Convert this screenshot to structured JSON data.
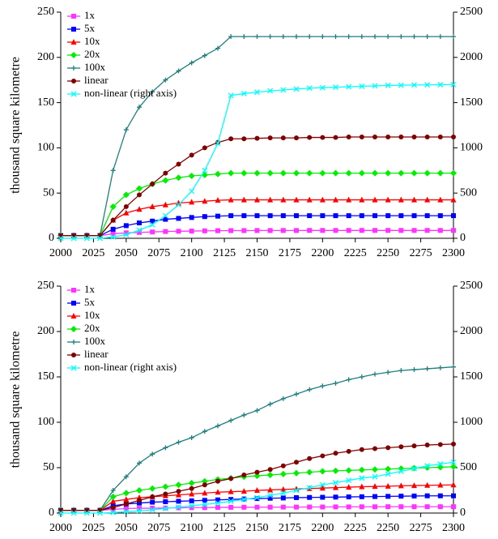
{
  "chart_data": [
    {
      "type": "line",
      "ylabel": "thousand square kilometre",
      "x": [
        2000,
        2010,
        2020,
        2030,
        2040,
        2050,
        2060,
        2070,
        2080,
        2090,
        2100,
        2110,
        2120,
        2130,
        2140,
        2150,
        2160,
        2170,
        2180,
        2190,
        2200,
        2210,
        2220,
        2230,
        2240,
        2250,
        2260,
        2270,
        2280,
        2290,
        2300
      ],
      "xlim": [
        2000,
        2300
      ],
      "xticks": [
        2000,
        2025,
        2050,
        2075,
        2100,
        2125,
        2150,
        2175,
        2200,
        2225,
        2250,
        2275,
        2300
      ],
      "ylim": [
        0,
        250
      ],
      "yticks": [
        0,
        50,
        100,
        150,
        200,
        250
      ],
      "y2lim": [
        0,
        2500
      ],
      "y2ticks": [
        0,
        500,
        1000,
        1500,
        2000,
        2500
      ],
      "legend": "upper left",
      "series": [
        {
          "name": "1x",
          "color": "#ff33ff",
          "marker": "square",
          "values": [
            3,
            3,
            3,
            3,
            5,
            6,
            6.5,
            7,
            7.5,
            7.8,
            8,
            8.2,
            8.4,
            8.5,
            8.5,
            8.6,
            8.6,
            8.6,
            8.6,
            8.7,
            8.7,
            8.7,
            8.7,
            8.7,
            8.7,
            8.7,
            8.7,
            8.7,
            8.7,
            8.7,
            8.7
          ]
        },
        {
          "name": "5x",
          "color": "#0000ff",
          "marker": "square",
          "values": [
            3,
            3,
            3,
            3,
            10,
            14,
            17,
            19,
            21,
            22,
            23,
            24,
            24.5,
            25,
            25,
            25,
            25,
            25,
            25,
            25,
            25,
            25,
            25,
            25,
            25,
            25,
            25,
            25,
            25,
            25,
            25
          ]
        },
        {
          "name": "10x",
          "color": "#ff0000",
          "marker": "triangle",
          "values": [
            3,
            3,
            3,
            3,
            20,
            28,
            32,
            35,
            37,
            39,
            40,
            41,
            42,
            42.5,
            42.5,
            42.5,
            42.5,
            42.5,
            42.5,
            42.5,
            42.5,
            42.5,
            42.5,
            42.5,
            42.5,
            42.5,
            42.5,
            42.5,
            42.5,
            42.5,
            42.5
          ]
        },
        {
          "name": "20x",
          "color": "#00ee00",
          "marker": "diamond",
          "values": [
            3,
            3,
            3,
            3,
            35,
            48,
            55,
            60,
            64,
            67,
            69,
            70,
            71,
            72,
            72,
            72,
            72,
            72,
            72,
            72,
            72,
            72,
            72,
            72,
            72,
            72,
            72,
            72,
            72,
            72,
            72
          ]
        },
        {
          "name": "100x",
          "color": "#1f7f7f",
          "marker": "plus",
          "values": [
            3,
            3,
            3,
            3,
            75,
            120,
            145,
            162,
            175,
            185,
            194,
            202,
            210,
            223,
            223,
            223,
            223,
            223,
            223,
            223,
            223,
            223,
            223,
            223,
            223,
            223,
            223,
            223,
            223,
            223,
            223
          ]
        },
        {
          "name": "linear",
          "color": "#800000",
          "marker": "circle",
          "values": [
            3,
            3,
            3,
            3,
            20,
            35,
            48,
            60,
            72,
            82,
            92,
            100,
            106,
            110,
            110,
            110.5,
            111,
            111,
            111,
            111.5,
            111.5,
            111.5,
            112,
            112,
            112,
            112,
            112,
            112,
            112,
            112,
            112
          ]
        },
        {
          "name": "non-linear (right axis)",
          "color": "#00ffff",
          "marker": "cross",
          "axis": "y2",
          "values": [
            0,
            0,
            0,
            0,
            15,
            40,
            90,
            150,
            250,
            370,
            520,
            750,
            1050,
            1580,
            1600,
            1615,
            1630,
            1640,
            1650,
            1660,
            1665,
            1670,
            1675,
            1680,
            1685,
            1690,
            1692,
            1695,
            1697,
            1698,
            1700
          ]
        }
      ]
    },
    {
      "type": "line",
      "ylabel": "thousand square kilometre",
      "x": [
        2000,
        2010,
        2020,
        2030,
        2040,
        2050,
        2060,
        2070,
        2080,
        2090,
        2100,
        2110,
        2120,
        2130,
        2140,
        2150,
        2160,
        2170,
        2180,
        2190,
        2200,
        2210,
        2220,
        2230,
        2240,
        2250,
        2260,
        2270,
        2280,
        2290,
        2300
      ],
      "xlim": [
        2000,
        2300
      ],
      "xticks": [
        2000,
        2025,
        2050,
        2075,
        2100,
        2125,
        2150,
        2175,
        2200,
        2225,
        2250,
        2275,
        2300
      ],
      "ylim": [
        0,
        250
      ],
      "yticks": [
        0,
        50,
        100,
        150,
        200,
        250
      ],
      "y2lim": [
        0,
        2500
      ],
      "y2ticks": [
        0,
        500,
        1000,
        1500,
        2000,
        2500
      ],
      "legend": "upper left",
      "series": [
        {
          "name": "1x",
          "color": "#ff33ff",
          "marker": "square",
          "values": [
            3,
            3,
            3,
            3,
            4,
            5,
            5.2,
            5.4,
            5.6,
            5.8,
            6,
            6,
            6.2,
            6.3,
            6.4,
            6.5,
            6.5,
            6.6,
            6.6,
            6.7,
            6.7,
            6.8,
            6.8,
            6.9,
            6.9,
            7,
            7,
            7,
            7,
            7,
            7
          ]
        },
        {
          "name": "5x",
          "color": "#0000ff",
          "marker": "square",
          "values": [
            3,
            3,
            3,
            3,
            8,
            10,
            11,
            12,
            12.5,
            13,
            13.5,
            14,
            14.5,
            15,
            15.5,
            16,
            16.3,
            16.6,
            17,
            17.2,
            17.4,
            17.6,
            17.8,
            18,
            18.2,
            18.4,
            18.6,
            18.8,
            19,
            19,
            19
          ]
        },
        {
          "name": "10x",
          "color": "#ff0000",
          "marker": "triangle",
          "values": [
            3,
            3,
            3,
            3,
            13,
            15,
            17,
            18,
            19,
            20,
            21,
            22,
            23,
            23.5,
            24,
            25,
            25.5,
            26,
            26.5,
            27,
            27.5,
            28,
            28.5,
            29,
            29.3,
            29.6,
            30,
            30.3,
            30.6,
            30.8,
            31
          ]
        },
        {
          "name": "20x",
          "color": "#00ee00",
          "marker": "diamond",
          "values": [
            3,
            3,
            3,
            3,
            18,
            22,
            25,
            27,
            29,
            31,
            33,
            35,
            37,
            38.5,
            40,
            41,
            42,
            43,
            44,
            45,
            46,
            46.5,
            47,
            47.5,
            48,
            48.5,
            49,
            49.5,
            50,
            50.5,
            51
          ]
        },
        {
          "name": "100x",
          "color": "#1f7f7f",
          "marker": "plus",
          "values": [
            3,
            3,
            3,
            3,
            25,
            40,
            55,
            65,
            72,
            78,
            83,
            90,
            96,
            102,
            108,
            113,
            120,
            126,
            131,
            136,
            140,
            143,
            147,
            150,
            153,
            155,
            157,
            158,
            159,
            160,
            161
          ]
        },
        {
          "name": "linear",
          "color": "#800000",
          "marker": "circle",
          "values": [
            3,
            3,
            3,
            3,
            6,
            10,
            14,
            18,
            21,
            24,
            27,
            31,
            35,
            38,
            42,
            45,
            48,
            52,
            56,
            60,
            63,
            66,
            68,
            70,
            71,
            72,
            73,
            74,
            75,
            75.5,
            76
          ]
        },
        {
          "name": "non-linear (right axis)",
          "color": "#00ffff",
          "marker": "cross",
          "axis": "y2",
          "values": [
            0,
            0,
            0,
            0,
            5,
            15,
            25,
            35,
            50,
            65,
            80,
            95,
            110,
            130,
            150,
            170,
            195,
            220,
            250,
            280,
            310,
            335,
            360,
            385,
            400,
            430,
            460,
            490,
            520,
            540,
            560
          ]
        }
      ]
    }
  ]
}
